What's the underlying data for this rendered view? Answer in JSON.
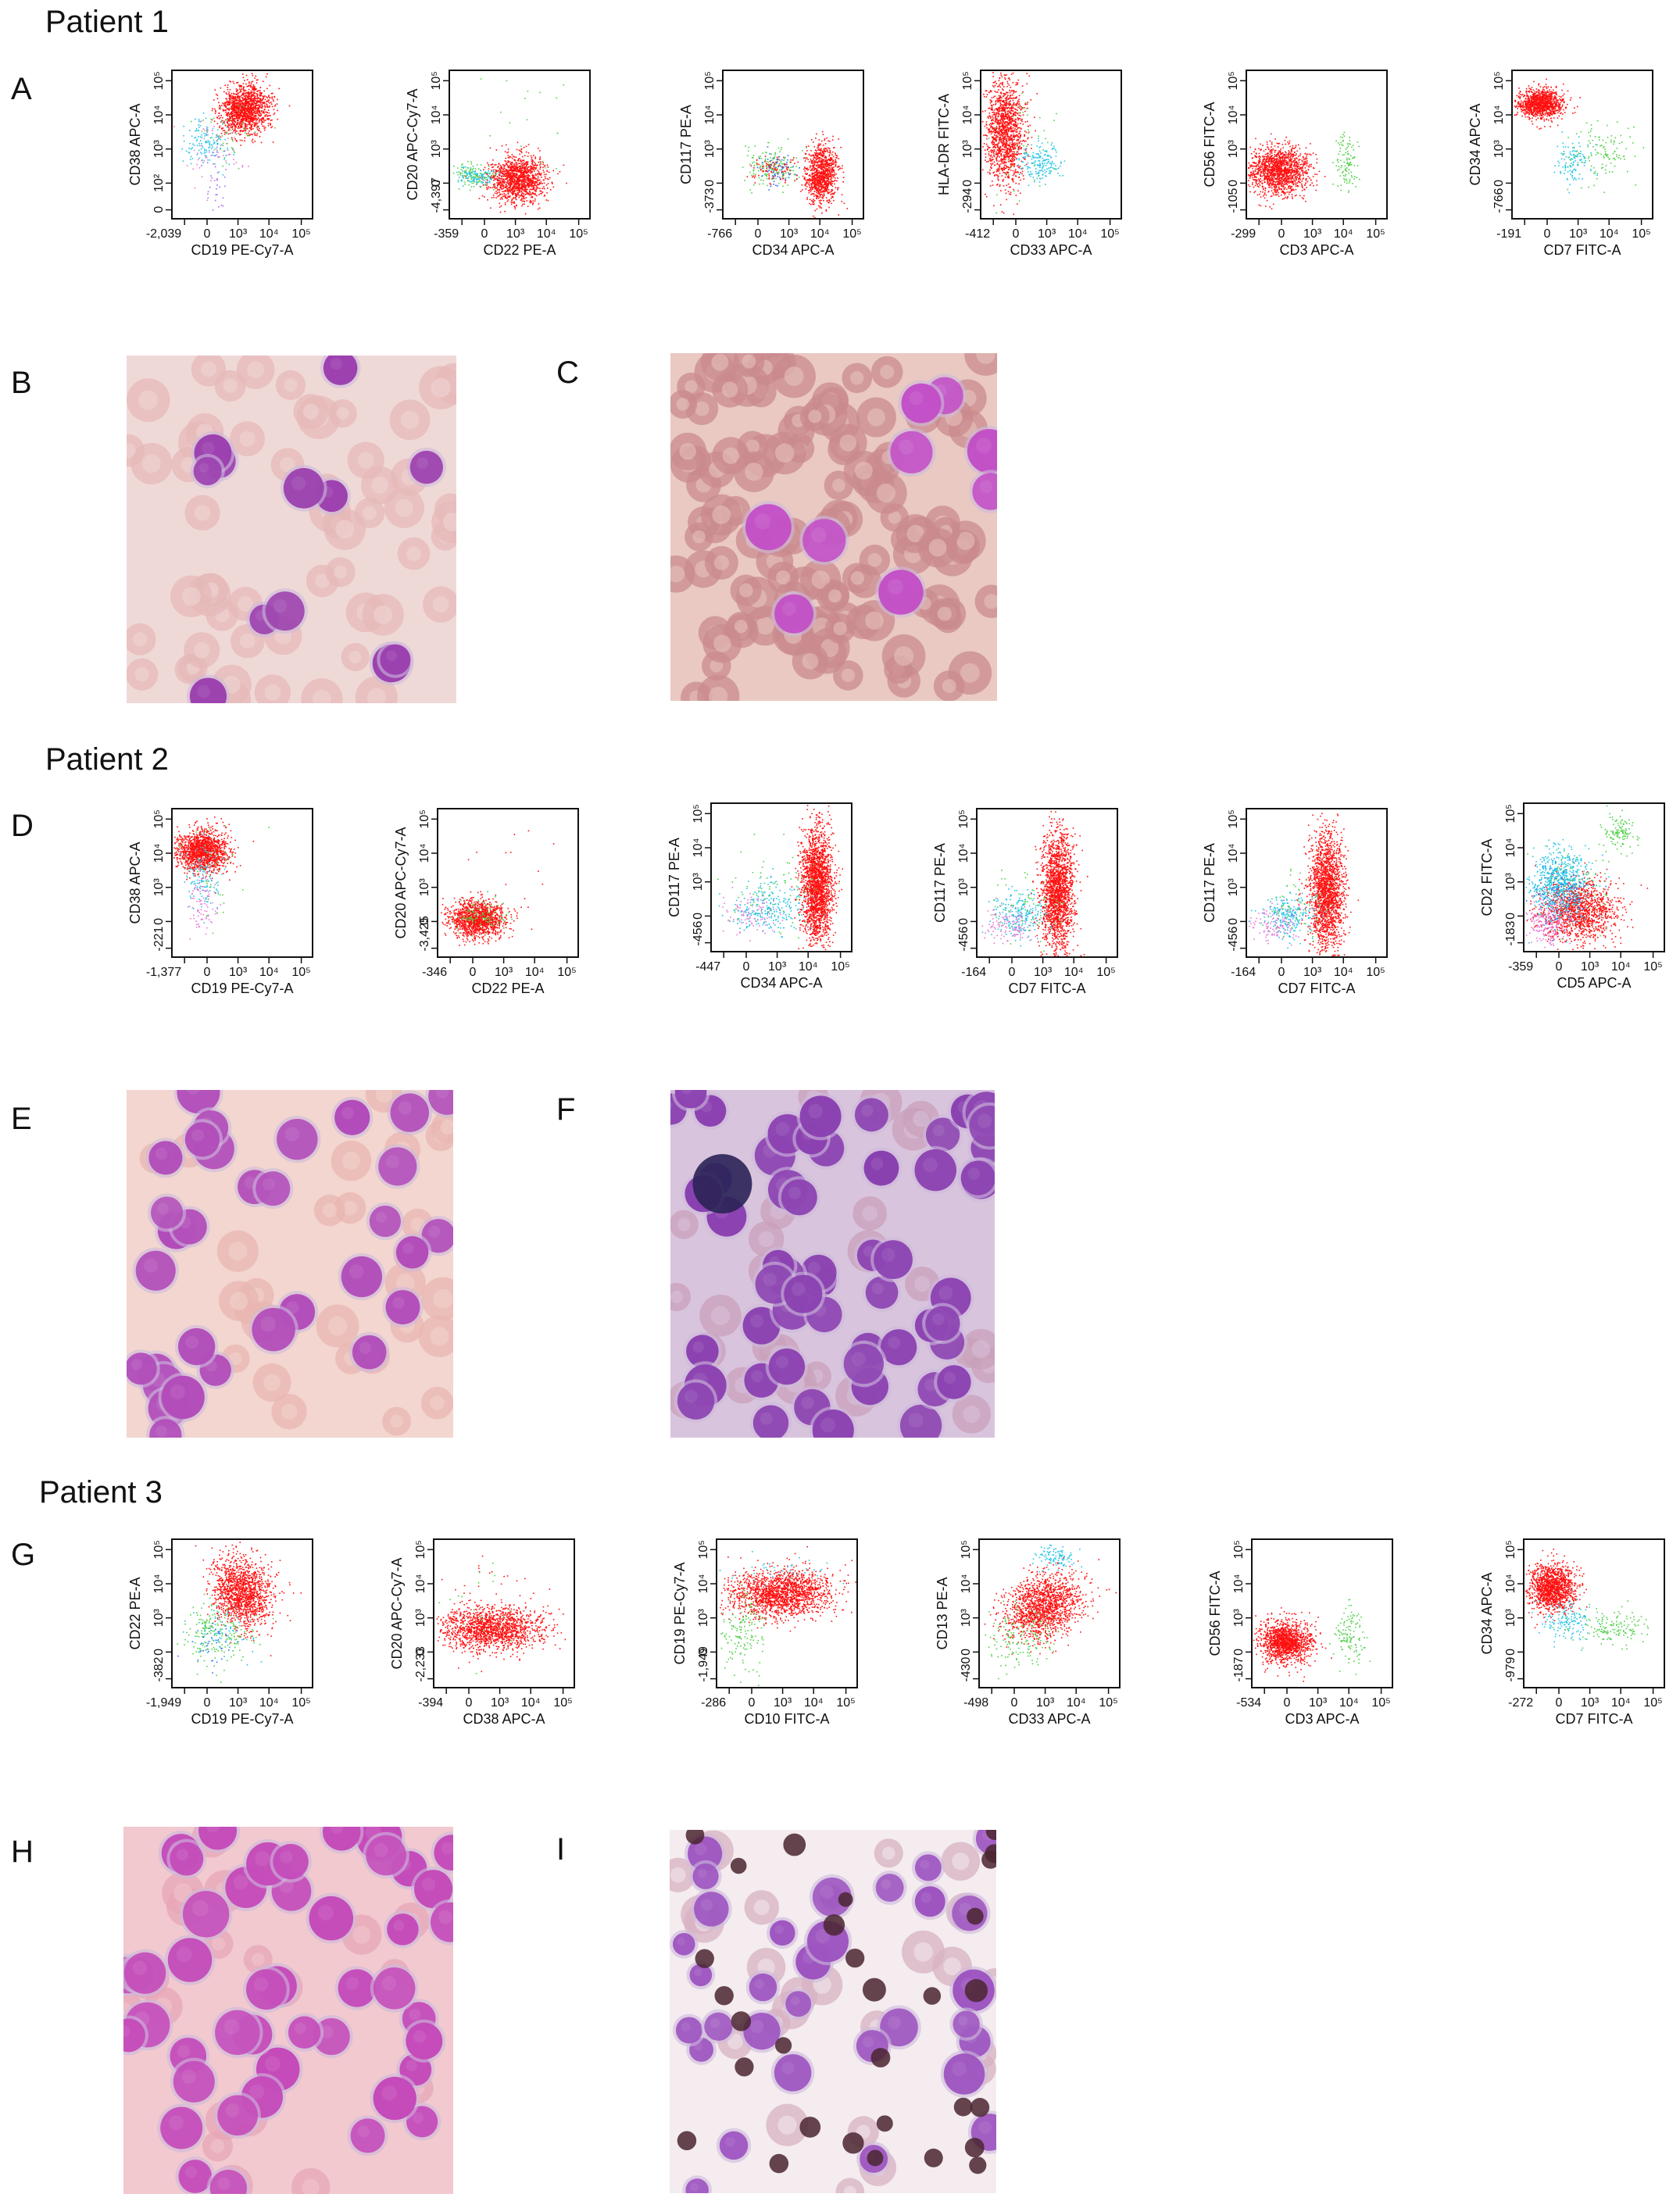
{
  "patients": [
    {
      "title": "Patient 1",
      "flow_label": "A",
      "micro_labels": [
        "B",
        "C"
      ],
      "plots": [
        {
          "ylabel": "CD38 APC-A",
          "xlabel": "CD19 PE-Cy7-A",
          "xticks": [
            "-2,039",
            "0",
            "10³",
            "10⁴",
            "10⁵"
          ],
          "yticks": [
            "0",
            "10²",
            "10³",
            "10⁴",
            "10⁵"
          ]
        },
        {
          "ylabel": "CD20 APC-Cy7-A",
          "xlabel": "CD22 PE-A",
          "xticks": [
            "-359",
            "0",
            "10³",
            "10⁴",
            "10⁵"
          ],
          "yticks": [
            "-4,397",
            "0",
            "10³",
            "10⁴",
            "10⁵"
          ]
        },
        {
          "ylabel": "CD117 PE-A",
          "xlabel": "CD34 APC-A",
          "xticks": [
            "-766",
            "0",
            "10³",
            "10⁴",
            "10⁵"
          ],
          "yticks": [
            "-373",
            "0",
            "10³",
            "10⁴",
            "10⁵"
          ]
        },
        {
          "ylabel": "HLA-DR FITC-A",
          "xlabel": "CD33 APC-A",
          "xticks": [
            "-412",
            "0",
            "10³",
            "10⁴",
            "10⁵"
          ],
          "yticks": [
            "-294",
            "0",
            "10³",
            "10⁴",
            "10⁵"
          ]
        },
        {
          "ylabel": "CD56 FITC-A",
          "xlabel": "CD3 APC-A",
          "xticks": [
            "-299",
            "0",
            "10³",
            "10⁴",
            "10⁵"
          ],
          "yticks": [
            "-105",
            "0",
            "10³",
            "10⁴",
            "10⁵"
          ]
        },
        {
          "ylabel": "CD34 APC-A",
          "xlabel": "CD7 FITC-A",
          "xticks": [
            "-191",
            "0",
            "10³",
            "10⁴",
            "10⁵"
          ],
          "yticks": [
            "-766",
            "0",
            "10³",
            "10⁴",
            "10⁵"
          ]
        }
      ]
    },
    {
      "title": "Patient 2",
      "flow_label": "D",
      "micro_labels": [
        "E",
        "F"
      ],
      "plots": [
        {
          "ylabel": "CD38 APC-A",
          "xlabel": "CD19 PE-Cy7-A",
          "xticks": [
            "-1,377",
            "0",
            "10³",
            "10⁴",
            "10⁵"
          ],
          "yticks": [
            "-221",
            "0",
            "10³",
            "10⁴",
            "10⁵"
          ]
        },
        {
          "ylabel": "CD20 APC-Cy7-A",
          "xlabel": "CD22 PE-A",
          "xticks": [
            "-346",
            "0",
            "10³",
            "10⁴",
            "10⁵"
          ],
          "yticks": [
            "-3,425",
            "0",
            "10³",
            "10⁴",
            "10⁵"
          ]
        },
        {
          "ylabel": "CD117 PE-A",
          "xlabel": "CD34 APC-A",
          "xticks": [
            "-447",
            "0",
            "10³",
            "10⁴",
            "10⁵"
          ],
          "yticks": [
            "-456",
            "0",
            "10³",
            "10⁴",
            "10⁵"
          ]
        },
        {
          "ylabel": "CD117 PE-A",
          "xlabel": "CD7 FITC-A",
          "xticks": [
            "-164",
            "0",
            "10³",
            "10⁴",
            "10⁵"
          ],
          "yticks": [
            "-456",
            "0",
            "10³",
            "10⁴",
            "10⁵"
          ]
        },
        {
          "ylabel": "CD117 PE-A",
          "xlabel": "CD7 FITC-A",
          "xticks": [
            "-164",
            "0",
            "10³",
            "10⁴",
            "10⁵"
          ],
          "yticks": [
            "-456",
            "0",
            "10³",
            "10⁴",
            "10⁵"
          ]
        },
        {
          "ylabel": "CD2 FITC-A",
          "xlabel": "CD5 APC-A",
          "xticks": [
            "-359",
            "0",
            "10³",
            "10⁴",
            "10⁵"
          ],
          "yticks": [
            "-183",
            "0",
            "10³",
            "10⁴",
            "10⁵"
          ]
        }
      ]
    },
    {
      "title": "Patient 3",
      "flow_label": "G",
      "micro_labels": [
        "H",
        "I"
      ],
      "plots": [
        {
          "ylabel": "CD22 PE-A",
          "xlabel": "CD19 PE-Cy7-A",
          "xticks": [
            "-1,949",
            "0",
            "10³",
            "10⁴",
            "10⁵"
          ],
          "yticks": [
            "-382",
            "0",
            "10³",
            "10⁴",
            "10⁵"
          ]
        },
        {
          "ylabel": "CD20 APC-Cy7-A",
          "xlabel": "CD38 APC-A",
          "xticks": [
            "-394",
            "0",
            "10³",
            "10⁴",
            "10⁵"
          ],
          "yticks": [
            "-2,233",
            "0",
            "10³",
            "10⁴",
            "10⁵"
          ]
        },
        {
          "ylabel": "CD19 PE-Cy7-A",
          "xlabel": "CD10 FITC-A",
          "xticks": [
            "-286",
            "0",
            "10³",
            "10⁴",
            "10⁵"
          ],
          "yticks": [
            "-1,949",
            "0",
            "10³",
            "10⁴",
            "10⁵"
          ]
        },
        {
          "ylabel": "CD13 PE-A",
          "xlabel": "CD33 APC-A",
          "xticks": [
            "-498",
            "0",
            "10³",
            "10⁴",
            "10⁵"
          ],
          "yticks": [
            "-430",
            "0",
            "10³",
            "10⁴",
            "10⁵"
          ]
        },
        {
          "ylabel": "CD56 FITC-A",
          "xlabel": "CD3 APC-A",
          "xticks": [
            "-534",
            "0",
            "10³",
            "10⁴",
            "10⁵"
          ],
          "yticks": [
            "-187",
            "0",
            "10³",
            "10⁴",
            "10⁵"
          ]
        },
        {
          "ylabel": "CD34 APC-A",
          "xlabel": "CD7 FITC-A",
          "xticks": [
            "-272",
            "0",
            "10³",
            "10⁴",
            "10⁵"
          ],
          "yticks": [
            "-979",
            "0",
            "10³",
            "10⁴",
            "10⁵"
          ]
        }
      ]
    }
  ]
}
